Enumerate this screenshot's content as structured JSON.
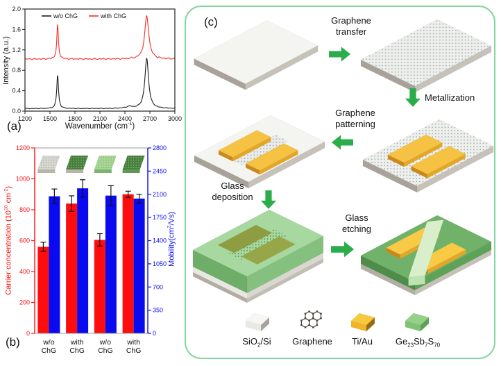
{
  "panel_a": {
    "label": "(a)",
    "ylabel": "Intensity (a.u.)",
    "xlabel_rich": [
      {
        "t": "Wavenumber (cm"
      },
      {
        "sup": "-1"
      },
      {
        "t": ")"
      }
    ],
    "legend": [
      "w/o ChG",
      "with ChG"
    ]
  },
  "panel_b": {
    "label": "(b)",
    "left_ylabel_rich": [
      {
        "t": "Carrier concentration (10"
      },
      {
        "sup": "10"
      },
      {
        "t": " cm"
      },
      {
        "sup": "-2"
      },
      {
        "t": ")"
      }
    ],
    "right_ylabel_rich": [
      {
        "t": "Mobility(cm"
      },
      {
        "sup": "2"
      },
      {
        "t": "/Vs)"
      }
    ],
    "sample_icons": [
      {
        "name": "graphene-on-sio2",
        "top": "#d8d8d2",
        "front": "#b9b3aa",
        "dots": "dark"
      },
      {
        "name": "graphene-on-sio2-with-chg",
        "top": "#457f3b",
        "front": "#b9b3aa",
        "dots": "light"
      },
      {
        "name": "graphene-on-glass",
        "top": "#a9d796",
        "front": "#7cb36e",
        "dots": "dark"
      },
      {
        "name": "graphene-on-glass-with-chg",
        "top": "#457f3b",
        "front": "#5d9b52",
        "dots": "light"
      }
    ]
  },
  "panel_c": {
    "label": "(c)",
    "steps": {
      "graphene_transfer": "Graphene transfer",
      "metallization": "Metallization",
      "graphene_patterning": "Graphene patterning",
      "glass_deposition": "Glass deposition",
      "glass_etching": "Glass etching"
    },
    "materials_legend": [
      {
        "name": "sio2-si",
        "label_rich": [
          {
            "t": "SiO"
          },
          {
            "sub": "2"
          },
          {
            "t": "/Si"
          }
        ]
      },
      {
        "name": "graphene",
        "label_rich": [
          {
            "t": "Graphene"
          }
        ]
      },
      {
        "name": "ti-au",
        "label_rich": [
          {
            "t": "Ti/Au"
          }
        ]
      },
      {
        "name": "chg-glass",
        "label_rich": [
          {
            "t": "Ge"
          },
          {
            "sub": "23"
          },
          {
            "t": "Sb"
          },
          {
            "sub": "7"
          },
          {
            "t": "S"
          },
          {
            "sub": "70"
          }
        ]
      }
    ]
  },
  "chart_data": [
    {
      "id": "raman_spectra",
      "type": "line",
      "xlabel": "Wavenumber (cm^-1)",
      "ylabel": "Intensity (a.u.)",
      "xlim": [
        1200,
        3000
      ],
      "ylim": [
        0,
        2.0
      ],
      "xticks": [
        1200,
        1500,
        1800,
        2100,
        2400,
        2700,
        3000
      ],
      "yticks": [
        "0.0",
        "0.4",
        "0.8",
        "1.2",
        "1.6",
        "2.0"
      ],
      "legend_position": "top-inside",
      "grid": false,
      "series": [
        {
          "name": "w/o ChG",
          "color": "#1c1c1c",
          "baseline": 0.05,
          "noise": 0.007,
          "peaks": [
            {
              "center": 1592,
              "height": 0.65,
              "width": 13
            },
            {
              "center": 2455,
              "height": 0.035,
              "width": 45
            },
            {
              "center": 2662,
              "height": 0.98,
              "width": 27
            }
          ]
        },
        {
          "name": "with ChG",
          "color": "#f92c22",
          "baseline": 1.02,
          "noise": 0.016,
          "peaks": [
            {
              "center": 1592,
              "height": 0.66,
              "width": 12
            },
            {
              "center": 2662,
              "height": 0.84,
              "width": 30
            }
          ]
        }
      ]
    },
    {
      "id": "electrical_properties",
      "type": "bar",
      "categories": [
        "w/o ChG",
        "with ChG",
        "w/o ChG",
        "with ChG"
      ],
      "series": [
        {
          "name": "Carrier concentration",
          "axis": "left",
          "color": "#fd0d0d",
          "values": [
            560,
            840,
            605,
            900
          ],
          "errors": [
            30,
            50,
            40,
            20
          ]
        },
        {
          "name": "Mobility",
          "axis": "right",
          "color": "#0a0af0",
          "values": [
            2070,
            2190,
            2080,
            2035
          ],
          "errors": [
            110,
            130,
            150,
            65
          ]
        }
      ],
      "left_axis": {
        "label": "Carrier concentration (10^10 cm^-2)",
        "lim": [
          0,
          1200
        ],
        "ticks": [
          0,
          200,
          400,
          600,
          800,
          1000,
          1200
        ],
        "color": "#fd0d0d"
      },
      "right_axis": {
        "label": "Mobility(cm^2/Vs)",
        "lim": [
          0,
          2800
        ],
        "ticks": [
          0,
          350,
          700,
          1050,
          1400,
          1750,
          2100,
          2450,
          2800
        ],
        "color": "#0a0af0"
      },
      "grid": false
    }
  ],
  "colors": {
    "arrow_green": "#2bad4c",
    "panel_border_green": "#82d59e",
    "bar_red": "#fd0d0d",
    "bar_blue": "#0a0af0",
    "gold": "#f6c243",
    "glass_green": "#8fce86",
    "substrate_gray": "#b7b1a8"
  }
}
